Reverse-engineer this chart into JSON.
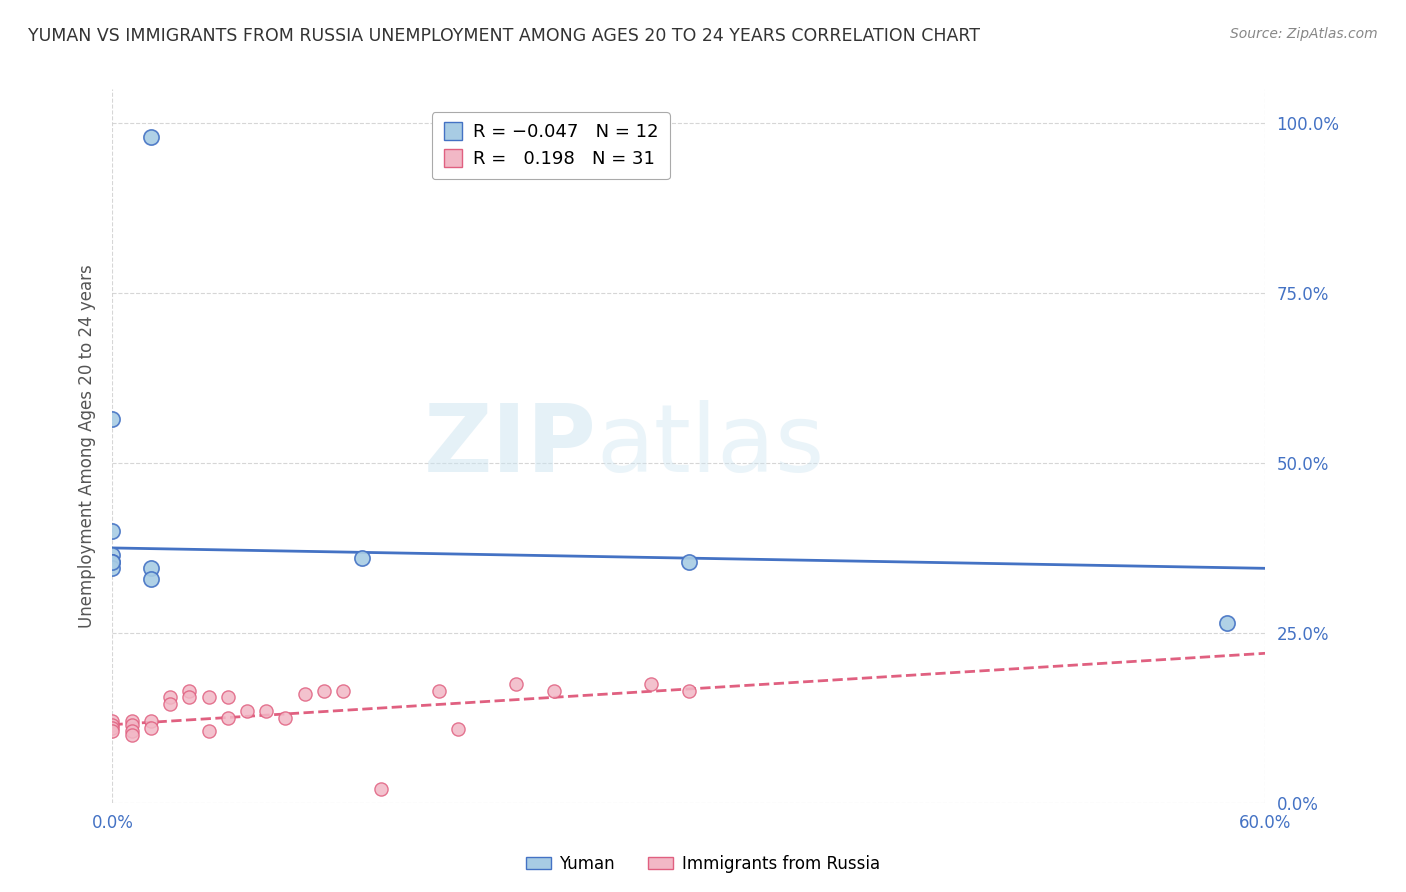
{
  "title": "YUMAN VS IMMIGRANTS FROM RUSSIA UNEMPLOYMENT AMONG AGES 20 TO 24 YEARS CORRELATION CHART",
  "source": "Source: ZipAtlas.com",
  "ylabel": "Unemployment Among Ages 20 to 24 years",
  "xlim": [
    0.0,
    0.6
  ],
  "ylim": [
    0.0,
    1.05
  ],
  "yticks": [
    0.0,
    0.25,
    0.5,
    0.75,
    1.0
  ],
  "ytick_labels": [
    "0.0%",
    "25.0%",
    "50.0%",
    "75.0%",
    "100.0%"
  ],
  "xticks": [
    0.0,
    0.6
  ],
  "xtick_labels": [
    "0.0%",
    "60.0%"
  ],
  "watermark_top": "ZIP",
  "watermark_bot": "atlas",
  "yuman_color": "#a8cce4",
  "russia_color": "#f2b8c6",
  "yuman_line_color": "#4472c4",
  "russia_line_color": "#e06080",
  "background_color": "#ffffff",
  "grid_color": "#cccccc",
  "yuman_points_x": [
    0.02,
    0.0,
    0.0,
    0.0,
    0.0,
    0.02,
    0.02,
    0.13,
    0.0,
    0.3,
    0.58,
    0.0
  ],
  "yuman_points_y": [
    0.98,
    0.4,
    0.365,
    0.355,
    0.345,
    0.345,
    0.33,
    0.36,
    0.355,
    0.355,
    0.265,
    0.565
  ],
  "russia_points_x": [
    0.0,
    0.0,
    0.0,
    0.0,
    0.01,
    0.01,
    0.01,
    0.01,
    0.02,
    0.02,
    0.03,
    0.03,
    0.04,
    0.04,
    0.05,
    0.05,
    0.06,
    0.06,
    0.07,
    0.08,
    0.09,
    0.1,
    0.11,
    0.12,
    0.14,
    0.17,
    0.18,
    0.21,
    0.23,
    0.28,
    0.3
  ],
  "russia_points_y": [
    0.12,
    0.115,
    0.11,
    0.105,
    0.12,
    0.115,
    0.105,
    0.1,
    0.12,
    0.11,
    0.155,
    0.145,
    0.165,
    0.155,
    0.155,
    0.105,
    0.155,
    0.125,
    0.135,
    0.135,
    0.125,
    0.16,
    0.165,
    0.165,
    0.02,
    0.165,
    0.108,
    0.175,
    0.165,
    0.175,
    0.165
  ],
  "yuman_trend_x": [
    0.0,
    0.6
  ],
  "yuman_trend_y": [
    0.375,
    0.345
  ],
  "russia_trend_x": [
    0.0,
    0.6
  ],
  "russia_trend_y": [
    0.115,
    0.22
  ],
  "legend_line1": "R = -0.047   N = 12",
  "legend_line2": "R =  0.198   N = 31",
  "title_color": "#333333",
  "source_color": "#888888",
  "tick_color": "#4472c4",
  "ylabel_color": "#555555"
}
